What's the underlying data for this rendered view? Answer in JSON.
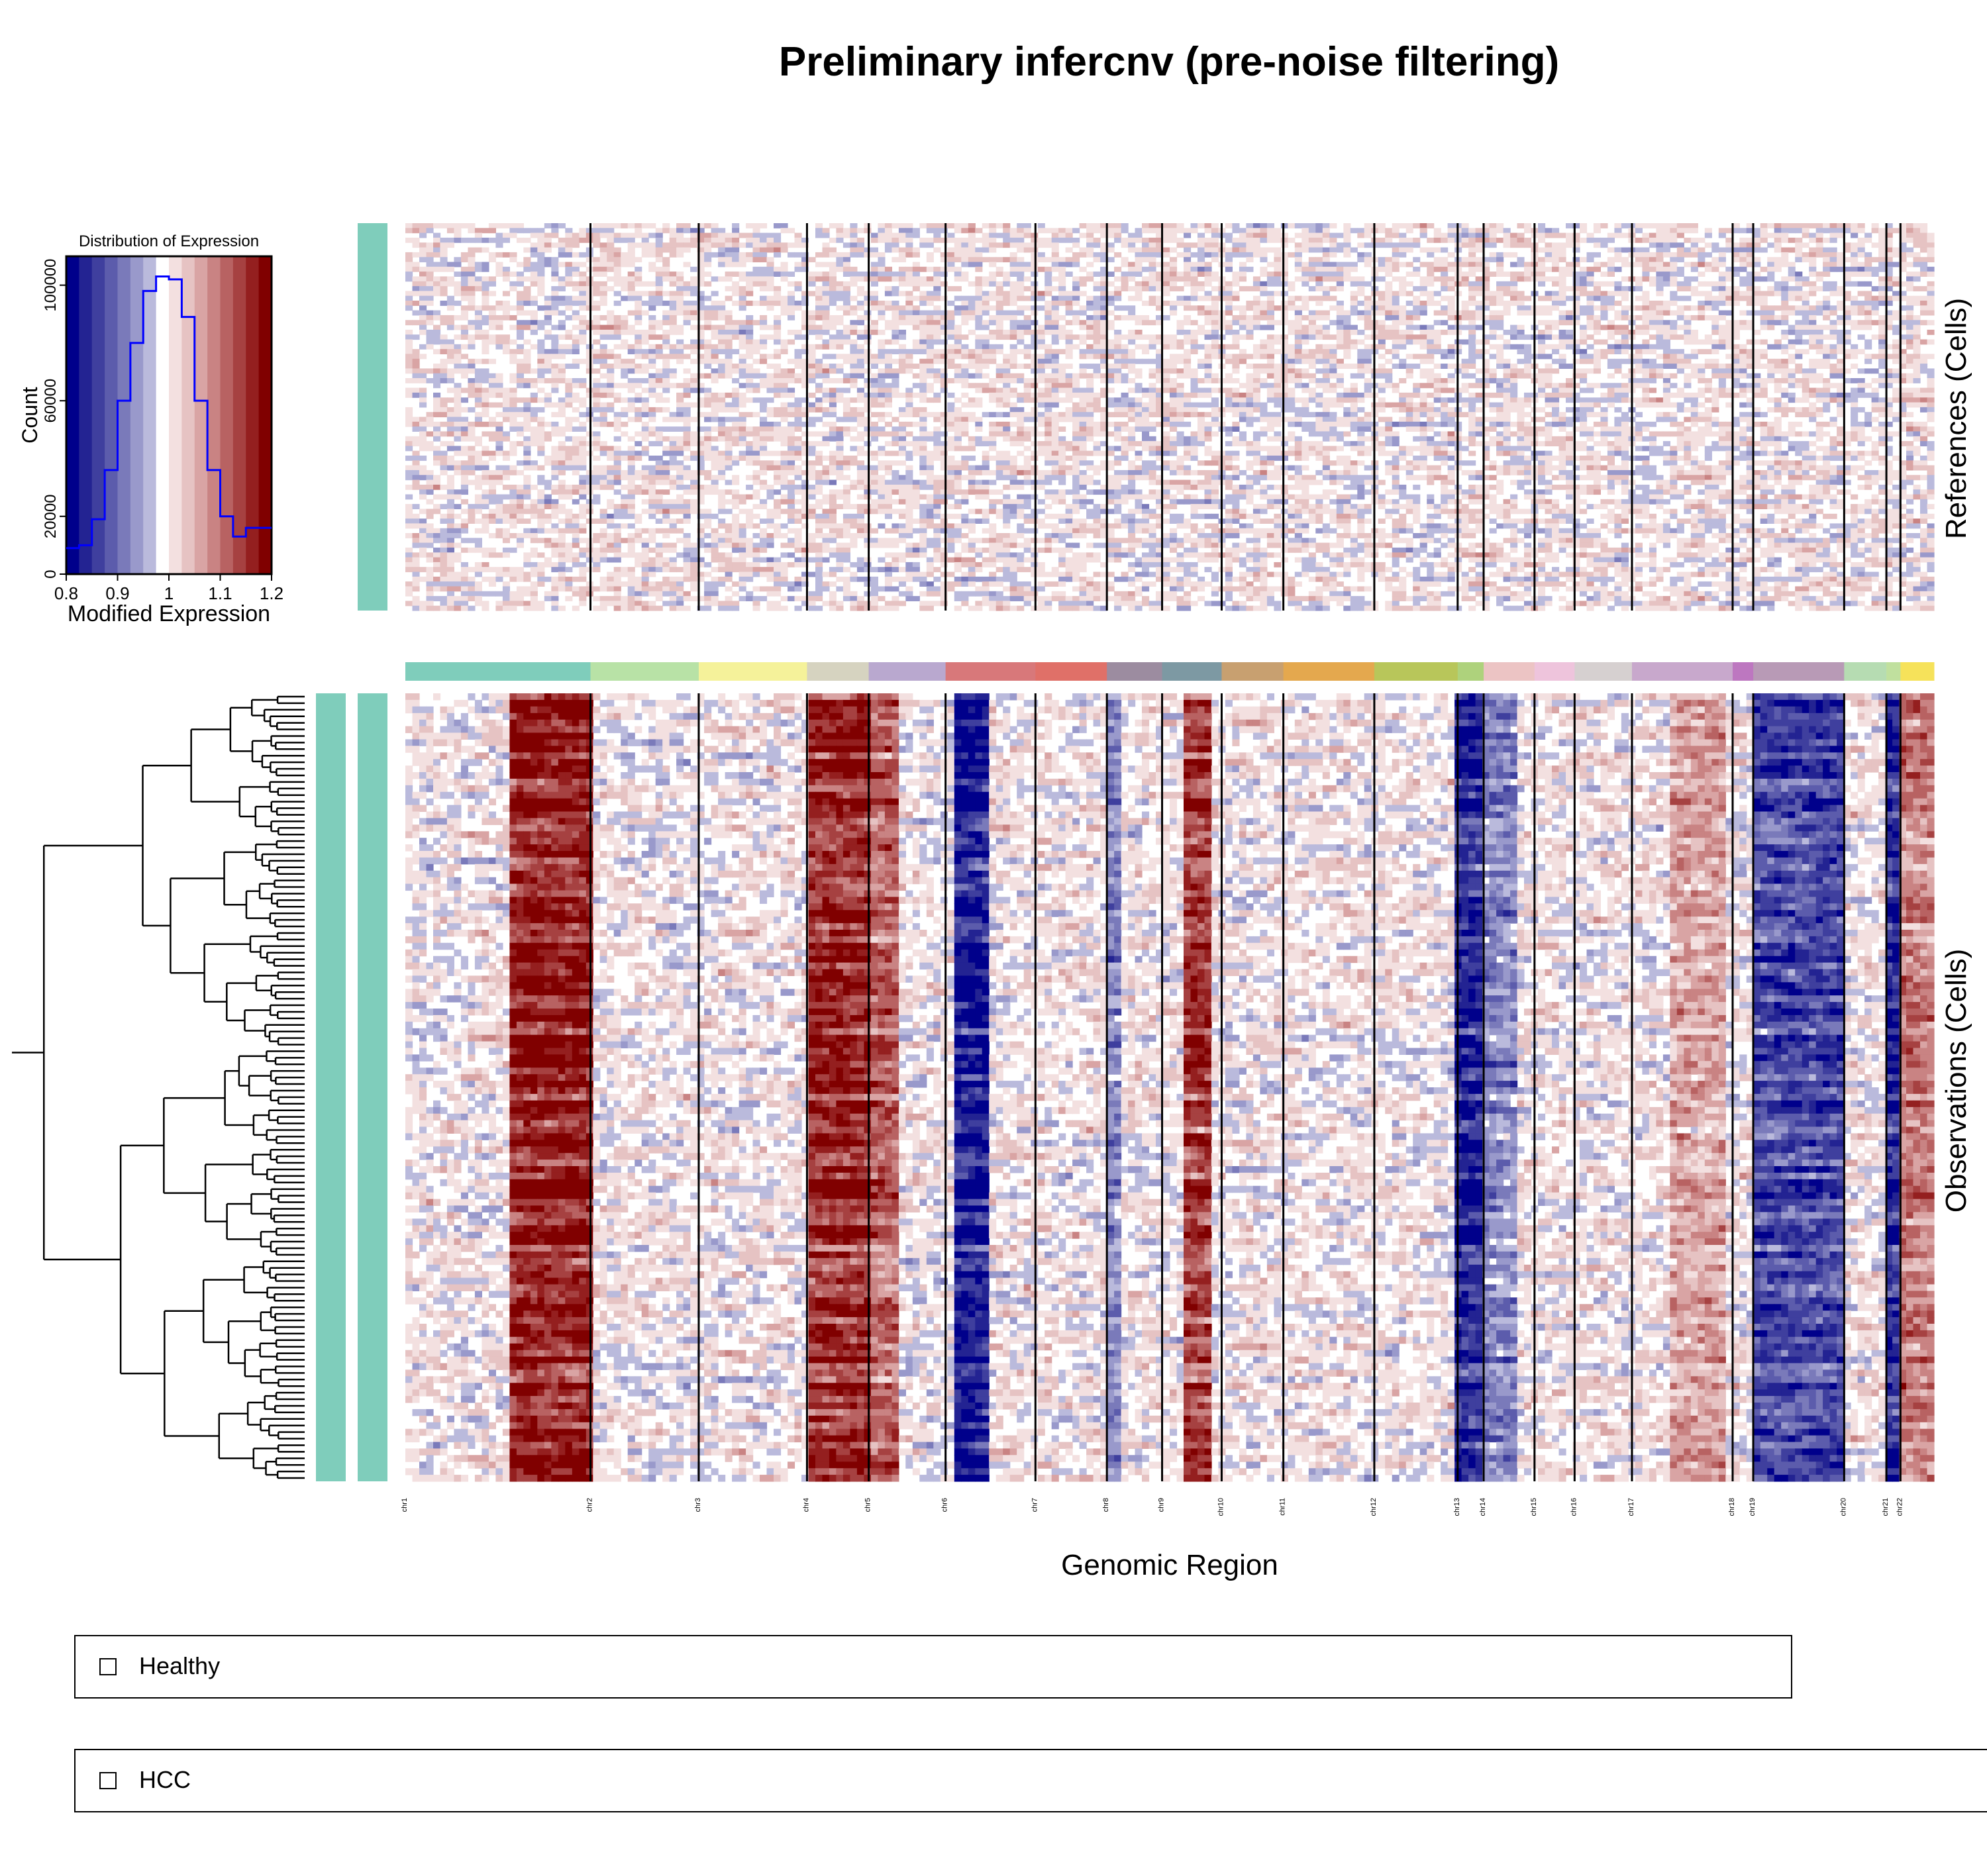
{
  "title": "Preliminary infercnv (pre-noise filtering)",
  "chart_data": [
    {
      "type": "bar",
      "title": "Distribution of Expression",
      "xlabel": "Modified Expression",
      "ylabel": "Count",
      "xlim": [
        0.8,
        1.2
      ],
      "ylim": [
        0,
        110000
      ],
      "x_ticks": [
        "0.8",
        "0.9",
        "1",
        "1.1",
        "1.2"
      ],
      "y_ticks": [
        "0",
        "20000",
        "60000",
        "100000"
      ],
      "y_tick_values": [
        0,
        20000,
        60000,
        100000
      ],
      "bin_edges": [
        0.8,
        0.825,
        0.85,
        0.875,
        0.9,
        0.925,
        0.95,
        0.975,
        1.0,
        1.025,
        1.05,
        1.075,
        1.1,
        1.125,
        1.15,
        1.175,
        1.2
      ],
      "counts": [
        9000,
        10000,
        19000,
        36000,
        60000,
        80000,
        98000,
        103000,
        102000,
        89000,
        60000,
        36000,
        20000,
        13000,
        16000,
        16000
      ],
      "line_color": "#0000ff",
      "background_palette": [
        "#00008b",
        "#232392",
        "#3f3f9e",
        "#5c5cac",
        "#7a7aba",
        "#9999cb",
        "#babadc",
        "#ffffff",
        "#f3e0e0",
        "#e6c3c3",
        "#d9a4a4",
        "#c98383",
        "#b86262",
        "#a64141",
        "#941f1f",
        "#800000"
      ]
    },
    {
      "type": "heatmap",
      "xlabel": "Genomic Region",
      "top_panel_label": "References (Cells)",
      "bottom_panel_label": "Observations (Cells)",
      "value_range": [
        0.8,
        1.2
      ],
      "color_low": "#00008b",
      "color_mid": "#ffffff",
      "color_high": "#800000",
      "chromosomes": [
        "chr1",
        "chr2",
        "chr3",
        "chr4",
        "chr5",
        "chr6",
        "chr7",
        "chr8",
        "chr9",
        "chr10",
        "chr11",
        "chr12",
        "chr13",
        "chr14",
        "chr15",
        "chr16",
        "chr17",
        "chr18",
        "chr19",
        "chr20",
        "chr21",
        "chr22"
      ],
      "chromosome_colors": [
        "#7fcdbb",
        "#b8e2a6",
        "#f5f29a",
        "#d6d3c0",
        "#b9a8cf",
        "#d8787a",
        "#e07068",
        "#9c8ca0",
        "#7d99a3",
        "#c8a070",
        "#e4a84e",
        "#b8c65a",
        "#aed27c",
        "#ecc4c4",
        "#eec4dc",
        "#d6d0d0",
        "#c8a8cc",
        "#bd77c0",
        "#b89ab6",
        "#b6dcb2",
        "#c0e09e",
        "#f6e25a"
      ],
      "chromosome_relative_sizes": [
        1.71,
        1.0,
        1.0,
        0.57,
        0.71,
        0.83,
        0.66,
        0.51,
        0.55,
        0.57,
        0.84,
        0.77,
        0.24,
        0.47,
        0.37,
        0.53,
        0.93,
        0.19,
        0.84,
        0.39,
        0.13,
        0.31
      ],
      "cnv_pattern": {
        "gain": [
          {
            "chrom": "chr1",
            "start": 0.55,
            "end": 1.0,
            "strength": 0.9
          },
          {
            "chrom": "chr4",
            "start": 0.0,
            "end": 1.0,
            "strength": 0.85
          },
          {
            "chrom": "chr5",
            "start": 0.0,
            "end": 0.4,
            "strength": 0.6
          },
          {
            "chrom": "chr9",
            "start": 0.35,
            "end": 0.8,
            "strength": 0.8
          },
          {
            "chrom": "chr17",
            "start": 0.4,
            "end": 0.9,
            "strength": 0.35
          },
          {
            "chrom": "chr22",
            "start": 0.0,
            "end": 1.0,
            "strength": 0.5
          }
        ],
        "loss": [
          {
            "chrom": "chr6",
            "start": 0.1,
            "end": 0.45,
            "strength": 0.9
          },
          {
            "chrom": "chr13",
            "start": 0.0,
            "end": 1.0,
            "strength": 0.85
          },
          {
            "chrom": "chr14",
            "start": 0.0,
            "end": 0.7,
            "strength": 0.4
          },
          {
            "chrom": "chr19",
            "start": 0.0,
            "end": 1.0,
            "strength": 0.7
          },
          {
            "chrom": "chr21",
            "start": 0.0,
            "end": 1.0,
            "strength": 0.85
          },
          {
            "chrom": "chr8",
            "start": 0.0,
            "end": 0.3,
            "strength": 0.4
          }
        ]
      },
      "row_annotation_color": "#7fcdbb"
    }
  ],
  "legend": {
    "group1": {
      "label": "Healthy",
      "color": "#7fcdbb"
    },
    "group2": {
      "label": "HCC",
      "color": "#7fcdbb"
    }
  }
}
